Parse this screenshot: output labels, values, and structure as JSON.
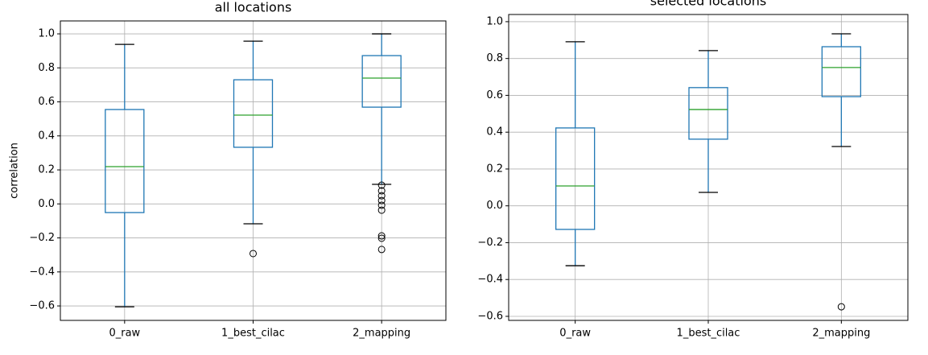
{
  "chart_data": [
    {
      "type": "box",
      "title": "all locations",
      "ylabel": "correlation",
      "categories": [
        "0_raw",
        "1_best_cilac",
        "2_mapping"
      ],
      "boxes": [
        {
          "min": -0.605,
          "q1": -0.051,
          "median": 0.219,
          "q3": 0.555,
          "max": 0.938,
          "outliers": []
        },
        {
          "min": -0.117,
          "q1": 0.333,
          "median": 0.522,
          "q3": 0.73,
          "max": 0.957,
          "outliers": [
            -0.292
          ]
        },
        {
          "min": 0.115,
          "q1": 0.569,
          "median": 0.74,
          "q3": 0.872,
          "max": 1.0,
          "outliers": [
            0.11,
            0.077,
            0.048,
            0.02,
            -0.008,
            -0.037,
            -0.188,
            -0.202,
            -0.268
          ]
        }
      ],
      "box_color": "#1f77b4",
      "median_color": "#2ca02c",
      "grid": true,
      "ylim": [
        -0.685,
        1.076
      ],
      "yticks": [
        {
          "value": -0.6,
          "label": "−0.6"
        },
        {
          "value": -0.4,
          "label": "−0.4"
        },
        {
          "value": -0.2,
          "label": "−0.2"
        },
        {
          "value": 0,
          "label": "0.0"
        },
        0.2,
        0.4,
        0.6,
        0.8,
        {
          "value": 1,
          "label": "1.0"
        }
      ]
    },
    {
      "type": "box",
      "title": "selected locations",
      "categories": [
        "0_raw",
        "1_best_cilac",
        "2_mapping"
      ],
      "boxes": [
        {
          "min": -0.325,
          "q1": -0.128,
          "median": 0.108,
          "q3": 0.423,
          "max": 0.891,
          "outliers": []
        },
        {
          "min": 0.073,
          "q1": 0.362,
          "median": 0.523,
          "q3": 0.642,
          "max": 0.843,
          "outliers": []
        },
        {
          "min": 0.322,
          "q1": 0.593,
          "median": 0.751,
          "q3": 0.864,
          "max": 0.934,
          "outliers": [
            -0.548
          ]
        }
      ],
      "box_color": "#1f77b4",
      "median_color": "#2ca02c",
      "grid": true,
      "ylim": [
        -0.622,
        1.039
      ],
      "yticks": [
        {
          "value": -0.6,
          "label": "−0.6"
        },
        {
          "value": -0.4,
          "label": "−0.4"
        },
        {
          "value": -0.2,
          "label": "−0.2"
        },
        {
          "value": 0,
          "label": "0.0"
        },
        0.2,
        0.4,
        0.6,
        0.8,
        {
          "value": 1,
          "label": "1.0"
        }
      ]
    }
  ]
}
